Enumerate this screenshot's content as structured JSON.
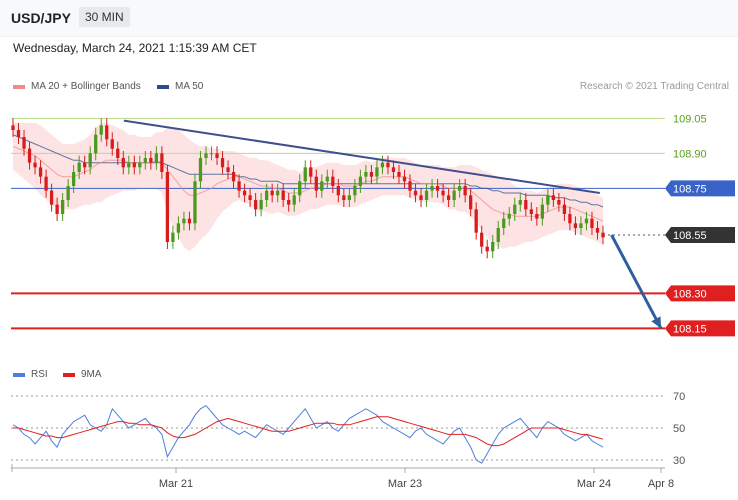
{
  "header": {
    "symbol": "USD/JPY",
    "timeframe": "30 MIN"
  },
  "datetime": "Wednesday, March 24, 2021 1:15:39 AM CET",
  "legend": {
    "ma20": {
      "label": "MA 20 + Bollinger Bands",
      "color": "#f08a8a"
    },
    "ma50": {
      "label": "MA 50",
      "color": "#2b4c8c"
    }
  },
  "copyright": "Research © 2021 Trading Central",
  "rsi_legend": {
    "rsi": {
      "label": "RSI",
      "color": "#4f7fd9"
    },
    "ma9": {
      "label": "9MA",
      "color": "#e02020"
    }
  },
  "chart_data": [
    {
      "type": "line",
      "panel": "price",
      "ylim": [
        107.95,
        109.18
      ],
      "x_ticks": [
        "Mar 21",
        "Mar 23",
        "Mar 24",
        "Apr 8"
      ],
      "levels": [
        {
          "value": 109.05,
          "label": "109.05",
          "style": "resistance"
        },
        {
          "value": 108.9,
          "label": "108.90",
          "style": "resistance"
        },
        {
          "value": 108.75,
          "label": "108.75",
          "style": "pivot"
        },
        {
          "value": 108.55,
          "label": "108.55",
          "style": "last"
        },
        {
          "value": 108.3,
          "label": "108.30",
          "style": "support"
        },
        {
          "value": 108.15,
          "label": "108.15",
          "style": "support"
        }
      ],
      "trendline": {
        "start": [
          0.17,
          109.04
        ],
        "end": [
          0.9,
          108.73
        ]
      },
      "projection": {
        "start": [
          0.918,
          108.55
        ],
        "end": [
          1.0,
          108.15
        ]
      },
      "close": [
        109.0,
        108.97,
        108.92,
        108.86,
        108.84,
        108.8,
        108.74,
        108.68,
        108.64,
        108.7,
        108.76,
        108.82,
        108.86,
        108.84,
        108.9,
        108.98,
        109.02,
        108.96,
        108.92,
        108.88,
        108.84,
        108.86,
        108.84,
        108.86,
        108.88,
        108.86,
        108.9,
        108.82,
        108.52,
        108.56,
        108.6,
        108.62,
        108.6,
        108.78,
        108.88,
        108.9,
        108.9,
        108.88,
        108.84,
        108.82,
        108.78,
        108.74,
        108.72,
        108.7,
        108.66,
        108.7,
        108.74,
        108.72,
        108.74,
        108.7,
        108.68,
        108.72,
        108.78,
        108.84,
        108.8,
        108.74,
        108.78,
        108.8,
        108.76,
        108.72,
        108.7,
        108.72,
        108.76,
        108.8,
        108.82,
        108.8,
        108.84,
        108.86,
        108.84,
        108.82,
        108.8,
        108.78,
        108.74,
        108.72,
        108.7,
        108.74,
        108.76,
        108.74,
        108.72,
        108.7,
        108.74,
        108.76,
        108.72,
        108.66,
        108.56,
        108.5,
        108.48,
        108.52,
        108.58,
        108.62,
        108.64,
        108.68,
        108.7,
        108.66,
        108.64,
        108.62,
        108.68,
        108.72,
        108.7,
        108.68,
        108.64,
        108.6,
        108.58,
        108.6,
        108.62,
        108.58,
        108.56,
        108.54
      ],
      "ma20": [
        108.93,
        108.92,
        108.91,
        108.9,
        108.89,
        108.87,
        108.85,
        108.83,
        108.81,
        108.8,
        108.8,
        108.8,
        108.81,
        108.82,
        108.83,
        108.85,
        108.86,
        108.87,
        108.87,
        108.87,
        108.87,
        108.86,
        108.86,
        108.86,
        108.86,
        108.86,
        108.87,
        108.86,
        108.83,
        108.8,
        108.77,
        108.74,
        108.72,
        108.72,
        108.73,
        108.74,
        108.75,
        108.77,
        108.78,
        108.79,
        108.8,
        108.8,
        108.79,
        108.78,
        108.77,
        108.76,
        108.76,
        108.75,
        108.75,
        108.74,
        108.73,
        108.73,
        108.73,
        108.74,
        108.75,
        108.75,
        108.76,
        108.77,
        108.77,
        108.77,
        108.76,
        108.76,
        108.76,
        108.77,
        108.78,
        108.78,
        108.79,
        108.8,
        108.8,
        108.8,
        108.8,
        108.8,
        108.79,
        108.78,
        108.77,
        108.77,
        108.77,
        108.77,
        108.76,
        108.75,
        108.75,
        108.75,
        108.75,
        108.74,
        108.72,
        108.7,
        108.68,
        108.66,
        108.65,
        108.64,
        108.64,
        108.63,
        108.63,
        108.63,
        108.63,
        108.63,
        108.64,
        108.65,
        108.66,
        108.67,
        108.67,
        108.67,
        108.66,
        108.65,
        108.64,
        108.63,
        108.62,
        108.61
      ],
      "ma50": [
        108.98,
        108.97,
        108.96,
        108.95,
        108.94,
        108.93,
        108.92,
        108.91,
        108.9,
        108.89,
        108.88,
        108.87,
        108.87,
        108.86,
        108.86,
        108.86,
        108.86,
        108.86,
        108.86,
        108.86,
        108.86,
        108.86,
        108.86,
        108.86,
        108.86,
        108.86,
        108.86,
        108.86,
        108.85,
        108.84,
        108.83,
        108.82,
        108.81,
        108.81,
        108.81,
        108.81,
        108.81,
        108.81,
        108.81,
        108.81,
        108.81,
        108.8,
        108.8,
        108.79,
        108.79,
        108.78,
        108.78,
        108.78,
        108.78,
        108.77,
        108.77,
        108.77,
        108.77,
        108.77,
        108.77,
        108.77,
        108.77,
        108.77,
        108.77,
        108.77,
        108.77,
        108.77,
        108.77,
        108.77,
        108.77,
        108.77,
        108.77,
        108.77,
        108.77,
        108.77,
        108.77,
        108.77,
        108.77,
        108.77,
        108.77,
        108.77,
        108.77,
        108.77,
        108.77,
        108.77,
        108.77,
        108.77,
        108.77,
        108.76,
        108.76,
        108.75,
        108.75,
        108.74,
        108.74,
        108.73,
        108.73,
        108.73,
        108.73,
        108.72,
        108.72,
        108.72,
        108.72,
        108.72,
        108.71,
        108.71,
        108.71,
        108.7,
        108.7,
        108.69,
        108.69,
        108.68,
        108.68,
        108.67
      ],
      "bollinger_width": [
        0.1,
        0.11,
        0.12,
        0.13,
        0.14,
        0.15,
        0.15,
        0.15,
        0.15,
        0.14,
        0.14,
        0.14,
        0.14,
        0.14,
        0.15,
        0.16,
        0.17,
        0.16,
        0.15,
        0.14,
        0.13,
        0.12,
        0.12,
        0.11,
        0.11,
        0.11,
        0.12,
        0.13,
        0.18,
        0.21,
        0.23,
        0.24,
        0.24,
        0.22,
        0.2,
        0.19,
        0.17,
        0.15,
        0.13,
        0.12,
        0.11,
        0.1,
        0.1,
        0.1,
        0.11,
        0.11,
        0.11,
        0.11,
        0.1,
        0.1,
        0.1,
        0.1,
        0.09,
        0.09,
        0.09,
        0.09,
        0.09,
        0.09,
        0.09,
        0.09,
        0.09,
        0.09,
        0.09,
        0.09,
        0.09,
        0.08,
        0.08,
        0.08,
        0.08,
        0.08,
        0.08,
        0.08,
        0.08,
        0.08,
        0.08,
        0.08,
        0.08,
        0.08,
        0.08,
        0.09,
        0.09,
        0.1,
        0.1,
        0.11,
        0.12,
        0.13,
        0.14,
        0.15,
        0.15,
        0.15,
        0.14,
        0.13,
        0.12,
        0.11,
        0.11,
        0.1,
        0.1,
        0.1,
        0.1,
        0.1,
        0.1,
        0.1,
        0.1,
        0.1,
        0.1,
        0.1,
        0.1,
        0.1
      ]
    },
    {
      "type": "line",
      "panel": "rsi",
      "ylim": [
        25,
        75
      ],
      "levels": [
        70,
        50,
        30
      ],
      "series": [
        {
          "name": "RSI",
          "values": [
            52,
            50,
            46,
            44,
            40,
            44,
            48,
            42,
            38,
            46,
            50,
            54,
            56,
            58,
            52,
            50,
            48,
            52,
            62,
            58,
            54,
            50,
            52,
            54,
            56,
            52,
            50,
            46,
            32,
            38,
            44,
            48,
            52,
            58,
            62,
            64,
            60,
            56,
            52,
            50,
            48,
            46,
            48,
            46,
            44,
            48,
            52,
            50,
            48,
            46,
            50,
            54,
            58,
            62,
            56,
            50,
            52,
            54,
            50,
            48,
            52,
            56,
            58,
            60,
            62,
            60,
            58,
            54,
            52,
            50,
            48,
            46,
            44,
            48,
            50,
            46,
            44,
            42,
            40,
            44,
            48,
            50,
            44,
            38,
            30,
            28,
            34,
            40,
            46,
            50,
            52,
            54,
            56,
            52,
            48,
            44,
            50,
            54,
            52,
            50,
            46,
            44,
            42,
            44,
            46,
            42,
            40,
            38
          ]
        },
        {
          "name": "9MA",
          "values": [
            50,
            50,
            49,
            48,
            47,
            46,
            45,
            45,
            44,
            44,
            45,
            46,
            47,
            48,
            49,
            50,
            51,
            52,
            53,
            54,
            54,
            53,
            53,
            52,
            52,
            52,
            51,
            50,
            47,
            45,
            44,
            44,
            45,
            46,
            48,
            50,
            52,
            54,
            55,
            56,
            55,
            54,
            53,
            52,
            51,
            50,
            49,
            48,
            48,
            48,
            48,
            49,
            50,
            51,
            52,
            53,
            53,
            53,
            53,
            52,
            52,
            52,
            53,
            54,
            55,
            56,
            57,
            57,
            57,
            56,
            55,
            54,
            53,
            52,
            51,
            50,
            49,
            48,
            47,
            46,
            46,
            46,
            46,
            45,
            44,
            42,
            40,
            39,
            39,
            40,
            42,
            44,
            46,
            48,
            50,
            50,
            50,
            50,
            50,
            50,
            49,
            48,
            47,
            46,
            46,
            45,
            44,
            43
          ]
        }
      ]
    }
  ]
}
